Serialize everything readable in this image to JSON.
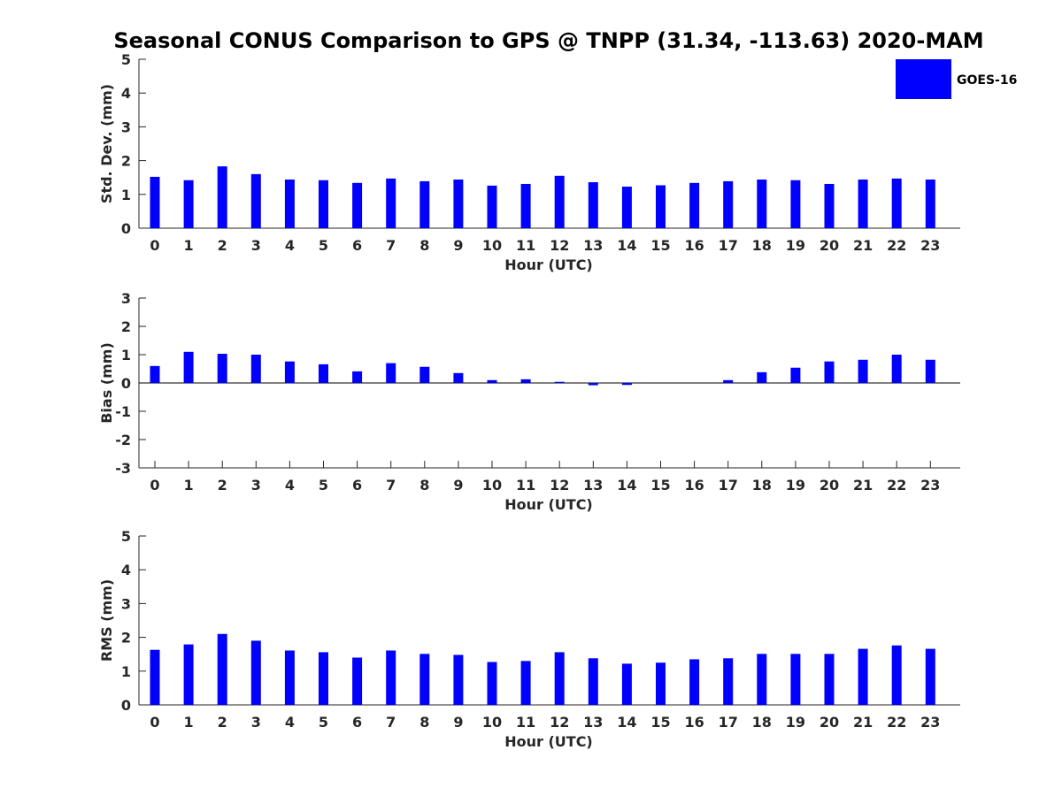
{
  "title": "Seasonal CONUS Comparison to GPS @ TNPP (31.34, -113.63) 2020-MAM",
  "legend": {
    "label": "GOES-16",
    "color": "#0000ff"
  },
  "chart_data": [
    {
      "type": "bar",
      "title": "Seasonal CONUS Comparison to GPS @ TNPP (31.34, -113.63) 2020-MAM",
      "xlabel": "Hour (UTC)",
      "ylabel": "Std. Dev. (mm)",
      "ylim": [
        0,
        5
      ],
      "yticks": [
        "0",
        "1",
        "2",
        "3",
        "4",
        "5"
      ],
      "categories": [
        "0",
        "1",
        "2",
        "3",
        "4",
        "5",
        "6",
        "7",
        "8",
        "9",
        "10",
        "11",
        "12",
        "13",
        "14",
        "15",
        "16",
        "17",
        "18",
        "19",
        "20",
        "21",
        "22",
        "23"
      ],
      "series": [
        {
          "name": "GOES-16",
          "color": "#0000ff",
          "values": [
            1.52,
            1.42,
            1.83,
            1.6,
            1.44,
            1.42,
            1.34,
            1.47,
            1.39,
            1.44,
            1.26,
            1.31,
            1.55,
            1.36,
            1.23,
            1.27,
            1.34,
            1.39,
            1.44,
            1.42,
            1.31,
            1.44,
            1.47,
            1.44
          ]
        }
      ],
      "legend": "top-right"
    },
    {
      "type": "bar",
      "xlabel": "Hour (UTC)",
      "ylabel": "Bias (mm)",
      "ylim": [
        -3,
        3
      ],
      "yticks": [
        "-3",
        "-2",
        "-1",
        "0",
        "1",
        "2",
        "3"
      ],
      "categories": [
        "0",
        "1",
        "2",
        "3",
        "4",
        "5",
        "6",
        "7",
        "8",
        "9",
        "10",
        "11",
        "12",
        "13",
        "14",
        "15",
        "16",
        "17",
        "18",
        "19",
        "20",
        "21",
        "22",
        "23"
      ],
      "series": [
        {
          "name": "GOES-16",
          "color": "#0000ff",
          "values": [
            0.6,
            1.1,
            1.03,
            1.0,
            0.76,
            0.66,
            0.41,
            0.7,
            0.57,
            0.35,
            0.1,
            0.13,
            0.04,
            -0.08,
            -0.07,
            0.0,
            0.0,
            0.1,
            0.38,
            0.54,
            0.76,
            0.82,
            1.0,
            0.82
          ]
        }
      ]
    },
    {
      "type": "bar",
      "xlabel": "Hour (UTC)",
      "ylabel": "RMS (mm)",
      "ylim": [
        0,
        5
      ],
      "yticks": [
        "0",
        "1",
        "2",
        "3",
        "4",
        "5"
      ],
      "categories": [
        "0",
        "1",
        "2",
        "3",
        "4",
        "5",
        "6",
        "7",
        "8",
        "9",
        "10",
        "11",
        "12",
        "13",
        "14",
        "15",
        "16",
        "17",
        "18",
        "19",
        "20",
        "21",
        "22",
        "23"
      ],
      "series": [
        {
          "name": "GOES-16",
          "color": "#0000ff",
          "values": [
            1.63,
            1.79,
            2.1,
            1.9,
            1.61,
            1.56,
            1.4,
            1.61,
            1.51,
            1.48,
            1.27,
            1.3,
            1.56,
            1.38,
            1.22,
            1.25,
            1.35,
            1.38,
            1.51,
            1.51,
            1.51,
            1.66,
            1.76,
            1.66
          ]
        }
      ]
    }
  ]
}
